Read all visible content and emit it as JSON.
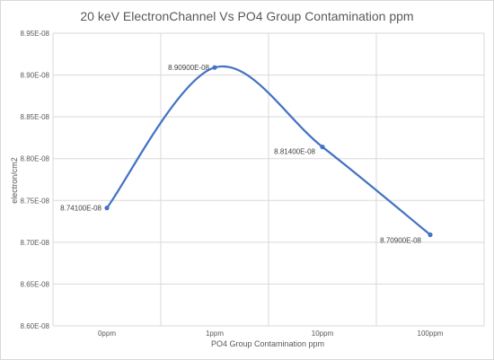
{
  "chart_data": {
    "type": "line",
    "title": "20 keV ElectronChannel Vs PO4 Group Contamination ppm",
    "xlabel": "PO4 Group Contamination ppm",
    "ylabel": "electron/cm2",
    "categories": [
      "0ppm",
      "1ppm",
      "10ppm",
      "100ppm"
    ],
    "ylim": [
      8.6e-08,
      8.95e-08
    ],
    "yticks": [
      {
        "value": 8.95e-08,
        "label": "8.95E-08"
      },
      {
        "value": 8.9e-08,
        "label": "8.90E-08"
      },
      {
        "value": 8.85e-08,
        "label": "8.85E-08"
      },
      {
        "value": 8.8e-08,
        "label": "8.80E-08"
      },
      {
        "value": 8.75e-08,
        "label": "8.75E-08"
      },
      {
        "value": 8.7e-08,
        "label": "8.70E-08"
      },
      {
        "value": 8.65e-08,
        "label": "8.65E-08"
      },
      {
        "value": 8.6e-08,
        "label": "8.60E-08"
      }
    ],
    "series": [
      {
        "values": [
          8.741e-08,
          8.909e-08,
          8.814e-08,
          8.709e-08
        ],
        "data_labels": [
          "8.74100E-08",
          "8.90900E-08",
          "8.81400E-08",
          "8.70900E-08"
        ],
        "color": "#4472c4"
      }
    ],
    "grid": true,
    "smooth": true
  }
}
